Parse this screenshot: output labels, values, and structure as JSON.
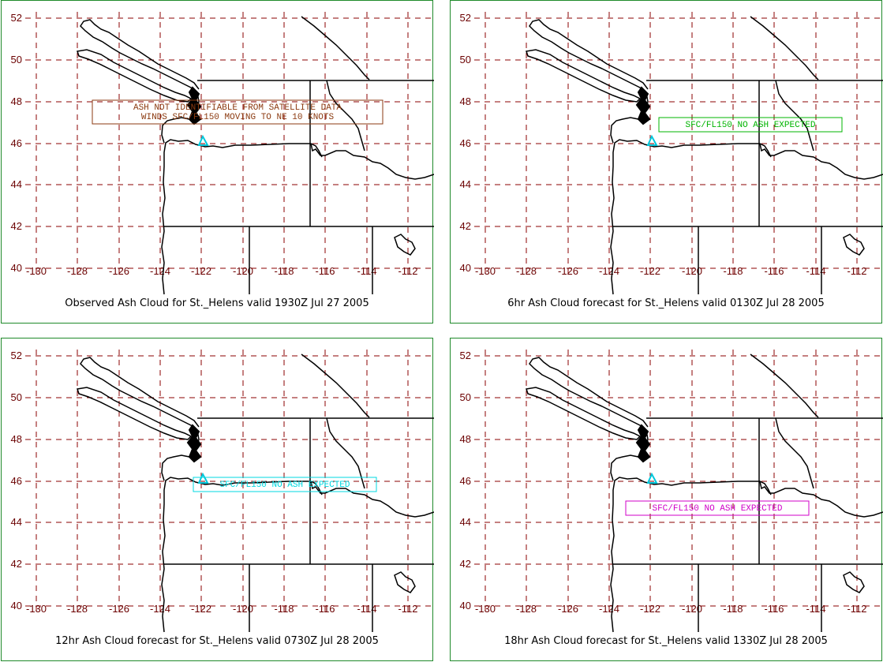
{
  "panels": [
    {
      "caption": "Observed Ash Cloud for St._Helens valid 1930Z Jul 27 2005",
      "message_lines": [
        "ASH NOT IDENTIFIABLE FROM SATELLITE DATA",
        "WINDS SFC/FL150 MOVING TO NE 10 KNOTS"
      ],
      "message_color": "#8b3a10"
    },
    {
      "caption": "6hr Ash Cloud forecast for St._Helens valid 0130Z Jul 28 2005",
      "message_lines": [
        "SFC/FL150 NO ASH EXPECTED"
      ],
      "message_color": "#00b400"
    },
    {
      "caption": "12hr Ash Cloud forecast for St._Helens valid 0730Z Jul 28 2005",
      "message_lines": [
        "SFC/FL150 NO ASH EXPECTED"
      ],
      "message_color": "#00d8e0"
    },
    {
      "caption": "18hr Ash Cloud forecast for St._Helens valid 1330Z Jul 28 2005",
      "message_lines": [
        "SFC/FL150 NO ASH EXPECTED"
      ],
      "message_color": "#d000c8"
    }
  ],
  "axes": {
    "lon_labels": [
      "-130",
      "-128",
      "-126",
      "-124",
      "-122",
      "-120",
      "-118",
      "-116",
      "-114",
      "-112"
    ],
    "lat_labels": [
      "52",
      "50",
      "48",
      "46",
      "44",
      "42",
      "40"
    ]
  },
  "colors": {
    "label": "#6b0000",
    "grid": "#8b0000",
    "coast": "#000000",
    "volcano": "#00c8dc",
    "border": "#1f8a2a"
  }
}
